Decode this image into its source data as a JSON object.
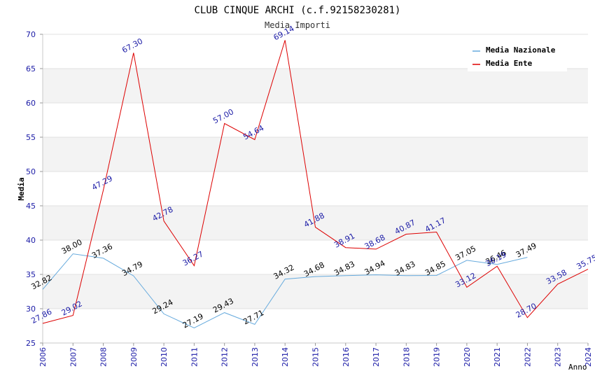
{
  "chart_data": {
    "type": "line",
    "title": "CLUB CINQUE ARCHI (c.f.92158230281)",
    "subtitle": "Media Importi",
    "xlabel": "Anno",
    "ylabel": "Media",
    "ylim": [
      25,
      70
    ],
    "yticks": [
      "25",
      "30",
      "35",
      "40",
      "45",
      "50",
      "55",
      "60",
      "65",
      "70"
    ],
    "categories": [
      "2006",
      "2007",
      "2008",
      "2009",
      "2010",
      "2011",
      "2012",
      "2013",
      "2014",
      "2015",
      "2016",
      "2017",
      "2018",
      "2019",
      "2020",
      "2021",
      "2022",
      "2023",
      "2024"
    ],
    "legend_position": "top-right",
    "series": [
      {
        "name": "Media Nazionale",
        "color": "#66aadd",
        "values": [
          32.82,
          38.0,
          37.36,
          34.79,
          29.24,
          27.19,
          29.43,
          27.71,
          34.32,
          34.68,
          34.83,
          34.94,
          34.83,
          34.85,
          37.05,
          36.46,
          37.49,
          null,
          null
        ],
        "labels": [
          "32.82",
          "38.00",
          "37.36",
          "34.79",
          "29.24",
          "27.19",
          "29.43",
          "27.71",
          "34.32",
          "34.68",
          "34.83",
          "34.94",
          "34.83",
          "34.85",
          "37.05",
          "36.46",
          "37.49",
          "",
          ""
        ]
      },
      {
        "name": "Media Ente",
        "color": "#dd0000",
        "values": [
          27.86,
          29.02,
          47.29,
          67.3,
          42.78,
          36.27,
          57.0,
          54.64,
          69.14,
          41.88,
          38.91,
          38.68,
          40.87,
          41.17,
          33.12,
          36.19,
          28.7,
          33.58,
          35.75
        ],
        "labels": [
          "27.86",
          "29.02",
          "47.29",
          "67.30",
          "42.78",
          "36.27",
          "57.00",
          "54.64",
          "69.14",
          "41.88",
          "38.91",
          "38.68",
          "40.87",
          "41.17",
          "33.12",
          "36.19",
          "28.70",
          "33.58",
          "35.75"
        ]
      }
    ]
  }
}
